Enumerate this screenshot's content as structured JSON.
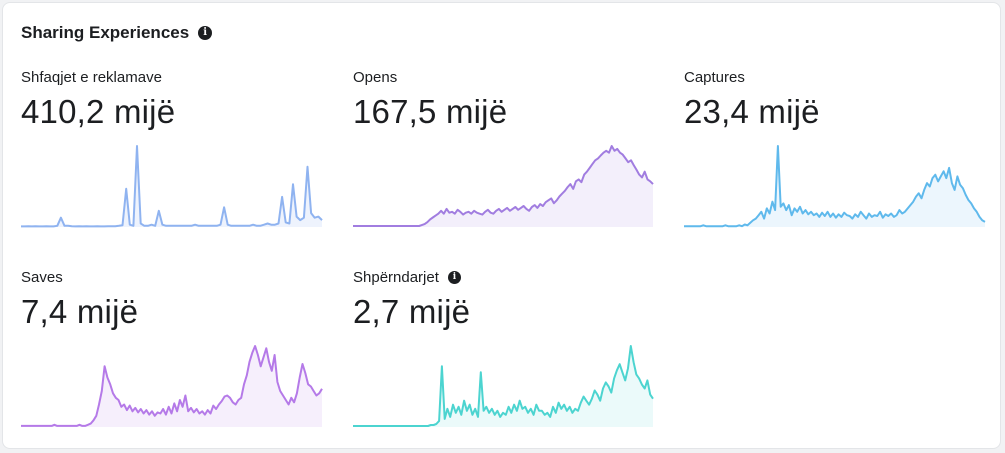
{
  "section": {
    "title": "Sharing Experiences",
    "info_icon": "info-icon"
  },
  "metrics": [
    {
      "id": "ad-impressions",
      "label": "Shfaqjet e reklamave",
      "value": "410,2 mijë",
      "color": "#8fb3f0",
      "fill": "#eef3fd",
      "has_info": false,
      "trend": [
        0.5,
        0.5,
        0.6,
        0.5,
        0.7,
        0.5,
        0.5,
        0.6,
        0.5,
        0.5,
        1,
        8,
        1,
        1,
        0.6,
        0.5,
        0.6,
        0.5,
        0.7,
        0.5,
        0.5,
        0.6,
        0.5,
        0.5,
        0.6,
        0.6,
        0.7,
        1,
        1.5,
        33,
        2,
        1,
        70,
        3,
        1,
        1,
        2,
        1,
        14,
        2,
        1,
        1,
        1,
        1,
        1,
        1,
        1,
        1,
        2,
        1,
        1,
        1,
        1,
        1,
        1,
        2,
        17,
        2,
        1,
        1,
        1,
        1,
        1,
        1,
        2,
        1,
        1,
        2,
        3,
        2,
        2,
        3,
        26,
        4,
        3,
        37,
        9,
        6,
        8,
        52,
        12,
        8,
        9,
        6
      ]
    },
    {
      "id": "opens",
      "label": "Opens",
      "value": "167,5 mijë",
      "color": "#a17de0",
      "fill": "#f3effb",
      "has_info": false,
      "trend": [
        1,
        1,
        1,
        1,
        1,
        1,
        1,
        1,
        1,
        1,
        1,
        1,
        1,
        1,
        1,
        1,
        1,
        1,
        1,
        1,
        1,
        1,
        1,
        1,
        1,
        2,
        3,
        5,
        8,
        10,
        12,
        14,
        17,
        14,
        19,
        15,
        16,
        14,
        18,
        16,
        13,
        15,
        16,
        14,
        17,
        15,
        14,
        13,
        16,
        18,
        15,
        14,
        17,
        19,
        16,
        18,
        20,
        17,
        19,
        21,
        18,
        20,
        22,
        19,
        17,
        21,
        23,
        20,
        24,
        22,
        26,
        28,
        30,
        25,
        28,
        32,
        35,
        38,
        42,
        45,
        40,
        48,
        50,
        47,
        55,
        58,
        62,
        66,
        70,
        72,
        75,
        78,
        80,
        78,
        85,
        80,
        82,
        78,
        76,
        72,
        68,
        70,
        65,
        60,
        55,
        52,
        58,
        50,
        48,
        45
      ]
    },
    {
      "id": "captures",
      "label": "Captures",
      "value": "23,4 mijë",
      "color": "#5fb9ec",
      "fill": "#ecf6fd",
      "has_info": false,
      "trend": [
        1,
        1,
        1,
        1,
        1,
        1,
        1,
        2,
        1,
        1,
        1,
        1,
        1,
        1,
        1,
        2,
        1,
        1,
        1,
        1,
        2,
        1,
        3,
        2,
        5,
        8,
        10,
        14,
        18,
        10,
        22,
        16,
        30,
        20,
        96,
        24,
        28,
        20,
        26,
        14,
        22,
        18,
        24,
        16,
        20,
        15,
        18,
        14,
        16,
        12,
        17,
        13,
        18,
        12,
        16,
        11,
        15,
        12,
        17,
        14,
        13,
        10,
        15,
        12,
        18,
        14,
        10,
        16,
        12,
        14,
        13,
        18,
        11,
        15,
        13,
        16,
        12,
        14,
        20,
        16,
        18,
        22,
        26,
        30,
        36,
        40,
        34,
        44,
        52,
        48,
        58,
        62,
        54,
        60,
        66,
        58,
        70,
        52,
        44,
        60,
        50,
        46,
        38,
        32,
        28,
        22,
        18,
        12,
        8,
        6
      ]
    },
    {
      "id": "saves",
      "label": "Saves",
      "value": "7,4 mijë",
      "color": "#b57ae8",
      "fill": "#f6effc",
      "has_info": false,
      "trend": [
        1,
        1,
        1,
        1,
        1,
        1,
        1,
        1,
        1,
        1,
        1,
        1,
        2,
        1,
        1,
        1,
        1,
        1,
        1,
        1,
        1,
        2,
        1,
        1,
        2,
        3,
        6,
        10,
        20,
        32,
        54,
        44,
        38,
        30,
        26,
        24,
        18,
        20,
        15,
        19,
        14,
        17,
        13,
        16,
        12,
        15,
        11,
        14,
        10,
        13,
        12,
        16,
        11,
        18,
        12,
        21,
        14,
        24,
        18,
        28,
        14,
        17,
        13,
        16,
        12,
        14,
        11,
        15,
        12,
        19,
        16,
        20,
        23,
        27,
        28,
        26,
        22,
        20,
        24,
        26,
        38,
        46,
        58,
        66,
        72,
        64,
        54,
        62,
        70,
        58,
        50,
        64,
        40,
        32,
        28,
        24,
        20,
        26,
        22,
        30,
        44,
        56,
        48,
        38,
        36,
        32,
        28,
        30,
        34
      ]
    },
    {
      "id": "shares",
      "label": "Shpërndarjet",
      "value": "2,7 mijë",
      "color": "#4cd4d0",
      "fill": "#ebfafa",
      "has_info": true,
      "trend": [
        1,
        1,
        1,
        1,
        1,
        1,
        1,
        1,
        1,
        1,
        1,
        1,
        1,
        1,
        1,
        1,
        1,
        1,
        1,
        1,
        1,
        1,
        1,
        1,
        1,
        1,
        1,
        1,
        2,
        2,
        3,
        6,
        60,
        8,
        18,
        10,
        22,
        14,
        20,
        12,
        26,
        16,
        22,
        12,
        18,
        10,
        54,
        16,
        20,
        14,
        18,
        12,
        16,
        10,
        14,
        12,
        20,
        14,
        22,
        16,
        26,
        18,
        20,
        14,
        18,
        12,
        22,
        16,
        16,
        12,
        14,
        10,
        20,
        14,
        24,
        18,
        22,
        16,
        20,
        14,
        18,
        16,
        24,
        30,
        26,
        22,
        28,
        36,
        32,
        26,
        38,
        44,
        40,
        34,
        48,
        56,
        62,
        54,
        46,
        58,
        80,
        64,
        52,
        48,
        42,
        38,
        46,
        32,
        28
      ]
    }
  ]
}
